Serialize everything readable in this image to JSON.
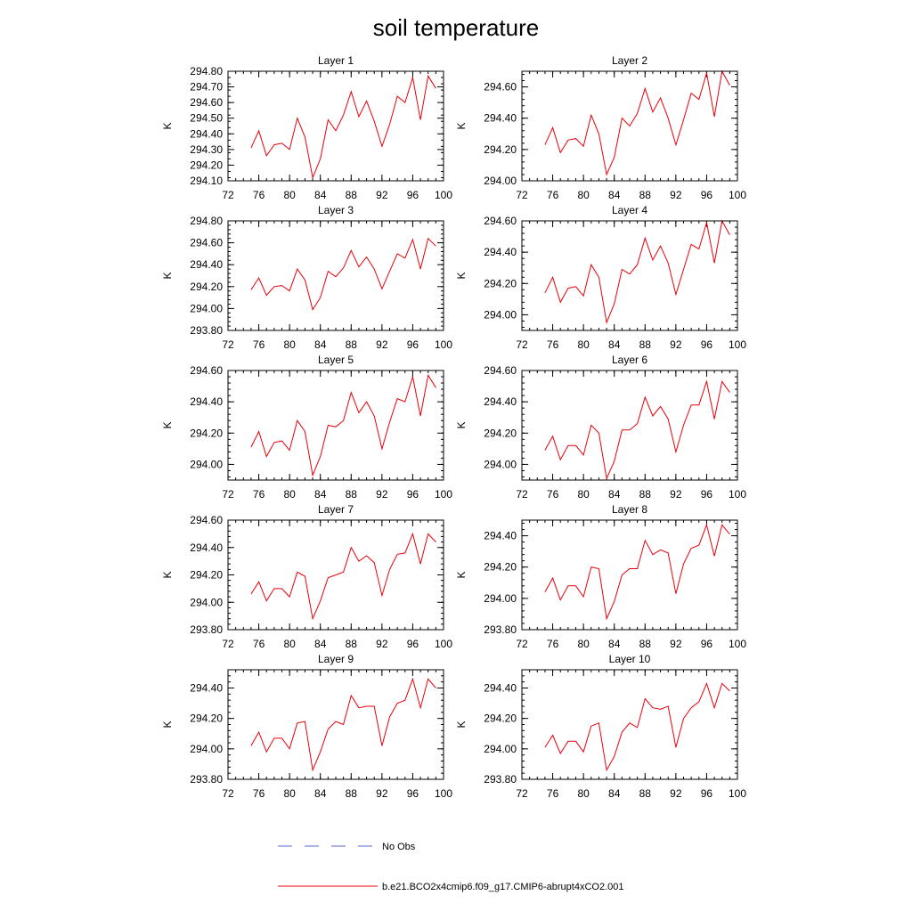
{
  "figure": {
    "title": "soil temperature",
    "legend": [
      {
        "label": "No Obs",
        "color": "#5a6ad6",
        "dash": true
      },
      {
        "label": "b.e21.BCO2x4cmip6.f09_g17.CMIP6-abrupt4xCO2.001",
        "color": "#e8000b",
        "dash": false
      }
    ]
  },
  "chart_data": [
    {
      "type": "line",
      "title": "Layer 1",
      "ylabel": "K",
      "xlim": [
        72,
        100
      ],
      "xticks": [
        "72",
        "76",
        "80",
        "84",
        "88",
        "92",
        "96",
        "100"
      ],
      "ylim": [
        294.1,
        294.8
      ],
      "yticks": [
        "294.10",
        "294.20",
        "294.30",
        "294.40",
        "294.50",
        "294.60",
        "294.70",
        "294.80"
      ],
      "series": [
        {
          "color": "#e8000b",
          "x": [
            75,
            76,
            77,
            78,
            79,
            80,
            81,
            82,
            83,
            84,
            85,
            86,
            87,
            88,
            89,
            90,
            91,
            92,
            93,
            94,
            95,
            96,
            97,
            98,
            99
          ],
          "values": [
            294.31,
            294.42,
            294.26,
            294.33,
            294.34,
            294.3,
            294.5,
            294.38,
            294.12,
            294.24,
            294.49,
            294.42,
            294.52,
            294.67,
            294.51,
            294.61,
            294.48,
            294.32,
            294.46,
            294.64,
            294.6,
            294.76,
            294.49,
            294.77,
            294.69
          ]
        }
      ]
    },
    {
      "type": "line",
      "title": "Layer 2",
      "ylabel": "K",
      "xlim": [
        72,
        100
      ],
      "xticks": [
        "72",
        "76",
        "80",
        "84",
        "88",
        "92",
        "96",
        "100"
      ],
      "ylim": [
        294.0,
        294.7
      ],
      "yticks": [
        "294.00",
        "294.20",
        "294.40",
        "294.60"
      ],
      "series": [
        {
          "color": "#e8000b",
          "x": [
            75,
            76,
            77,
            78,
            79,
            80,
            81,
            82,
            83,
            84,
            85,
            86,
            87,
            88,
            89,
            90,
            91,
            92,
            93,
            94,
            95,
            96,
            97,
            98,
            99
          ],
          "values": [
            294.23,
            294.34,
            294.18,
            294.26,
            294.27,
            294.22,
            294.42,
            294.3,
            294.04,
            294.15,
            294.4,
            294.35,
            294.43,
            294.59,
            294.44,
            294.53,
            294.4,
            294.23,
            294.39,
            294.56,
            294.52,
            294.69,
            294.41,
            294.7,
            294.61
          ]
        }
      ]
    },
    {
      "type": "line",
      "title": "Layer 3",
      "ylabel": "K",
      "xlim": [
        72,
        100
      ],
      "xticks": [
        "72",
        "76",
        "80",
        "84",
        "88",
        "92",
        "96",
        "100"
      ],
      "ylim": [
        293.8,
        294.8
      ],
      "yticks": [
        "293.80",
        "294.00",
        "294.20",
        "294.40",
        "294.60",
        "294.80"
      ],
      "series": [
        {
          "color": "#e8000b",
          "x": [
            75,
            76,
            77,
            78,
            79,
            80,
            81,
            82,
            83,
            84,
            85,
            86,
            87,
            88,
            89,
            90,
            91,
            92,
            93,
            94,
            95,
            96,
            97,
            98,
            99
          ],
          "values": [
            294.17,
            294.28,
            294.12,
            294.2,
            294.21,
            294.16,
            294.36,
            294.26,
            293.99,
            294.1,
            294.34,
            294.29,
            294.37,
            294.53,
            294.38,
            294.47,
            294.36,
            294.18,
            294.34,
            294.5,
            294.46,
            294.63,
            294.36,
            294.64,
            294.57
          ]
        }
      ]
    },
    {
      "type": "line",
      "title": "Layer 4",
      "ylabel": "K",
      "xlim": [
        72,
        100
      ],
      "xticks": [
        "72",
        "76",
        "80",
        "84",
        "88",
        "92",
        "96",
        "100"
      ],
      "ylim": [
        293.9,
        294.6
      ],
      "yticks": [
        "294.00",
        "294.20",
        "294.40",
        "294.60"
      ],
      "series": [
        {
          "color": "#e8000b",
          "x": [
            75,
            76,
            77,
            78,
            79,
            80,
            81,
            82,
            83,
            84,
            85,
            86,
            87,
            88,
            89,
            90,
            91,
            92,
            93,
            94,
            95,
            96,
            97,
            98,
            99
          ],
          "values": [
            294.14,
            294.24,
            294.08,
            294.17,
            294.18,
            294.12,
            294.32,
            294.24,
            293.95,
            294.07,
            294.29,
            294.26,
            294.32,
            294.49,
            294.35,
            294.44,
            294.33,
            294.13,
            294.29,
            294.45,
            294.42,
            294.59,
            294.33,
            294.6,
            294.51
          ]
        }
      ]
    },
    {
      "type": "line",
      "title": "Layer 5",
      "ylabel": "K",
      "xlim": [
        72,
        100
      ],
      "xticks": [
        "72",
        "76",
        "80",
        "84",
        "88",
        "92",
        "96",
        "100"
      ],
      "ylim": [
        293.9,
        294.6
      ],
      "yticks": [
        "294.00",
        "294.20",
        "294.40",
        "294.60"
      ],
      "series": [
        {
          "color": "#e8000b",
          "x": [
            75,
            76,
            77,
            78,
            79,
            80,
            81,
            82,
            83,
            84,
            85,
            86,
            87,
            88,
            89,
            90,
            91,
            92,
            93,
            94,
            95,
            96,
            97,
            98,
            99
          ],
          "values": [
            294.11,
            294.21,
            294.05,
            294.14,
            294.15,
            294.09,
            294.28,
            294.21,
            293.93,
            294.05,
            294.25,
            294.24,
            294.28,
            294.46,
            294.33,
            294.4,
            294.31,
            294.1,
            294.27,
            294.42,
            294.4,
            294.56,
            294.31,
            294.57,
            294.49
          ]
        }
      ]
    },
    {
      "type": "line",
      "title": "Layer 6",
      "ylabel": "K",
      "xlim": [
        72,
        100
      ],
      "xticks": [
        "72",
        "76",
        "80",
        "84",
        "88",
        "92",
        "96",
        "100"
      ],
      "ylim": [
        293.9,
        294.6
      ],
      "yticks": [
        "294.00",
        "294.20",
        "294.40",
        "294.60"
      ],
      "series": [
        {
          "color": "#e8000b",
          "x": [
            75,
            76,
            77,
            78,
            79,
            80,
            81,
            82,
            83,
            84,
            85,
            86,
            87,
            88,
            89,
            90,
            91,
            92,
            93,
            94,
            95,
            96,
            97,
            98,
            99
          ],
          "values": [
            294.09,
            294.18,
            294.03,
            294.12,
            294.12,
            294.06,
            294.25,
            294.2,
            293.91,
            294.02,
            294.22,
            294.22,
            294.26,
            294.43,
            294.31,
            294.37,
            294.29,
            294.08,
            294.25,
            294.38,
            294.38,
            294.53,
            294.29,
            294.53,
            294.46
          ]
        }
      ]
    },
    {
      "type": "line",
      "title": "Layer 7",
      "ylabel": "K",
      "xlim": [
        72,
        100
      ],
      "xticks": [
        "72",
        "76",
        "80",
        "84",
        "88",
        "92",
        "96",
        "100"
      ],
      "ylim": [
        293.8,
        294.6
      ],
      "yticks": [
        "293.80",
        "294.00",
        "294.20",
        "294.40",
        "294.60"
      ],
      "series": [
        {
          "color": "#e8000b",
          "x": [
            75,
            76,
            77,
            78,
            79,
            80,
            81,
            82,
            83,
            84,
            85,
            86,
            87,
            88,
            89,
            90,
            91,
            92,
            93,
            94,
            95,
            96,
            97,
            98,
            99
          ],
          "values": [
            294.06,
            294.15,
            294.01,
            294.1,
            294.1,
            294.04,
            294.22,
            294.19,
            293.88,
            294.01,
            294.18,
            294.2,
            294.22,
            294.4,
            294.3,
            294.34,
            294.29,
            294.05,
            294.24,
            294.35,
            294.36,
            294.5,
            294.28,
            294.5,
            294.44
          ]
        }
      ]
    },
    {
      "type": "line",
      "title": "Layer 8",
      "ylabel": "K",
      "xlim": [
        72,
        100
      ],
      "xticks": [
        "72",
        "76",
        "80",
        "84",
        "88",
        "92",
        "96",
        "100"
      ],
      "ylim": [
        293.8,
        294.5
      ],
      "yticks": [
        "293.80",
        "294.00",
        "294.20",
        "294.40"
      ],
      "series": [
        {
          "color": "#e8000b",
          "x": [
            75,
            76,
            77,
            78,
            79,
            80,
            81,
            82,
            83,
            84,
            85,
            86,
            87,
            88,
            89,
            90,
            91,
            92,
            93,
            94,
            95,
            96,
            97,
            98,
            99
          ],
          "values": [
            294.04,
            294.13,
            293.99,
            294.08,
            294.08,
            294.01,
            294.2,
            294.19,
            293.87,
            293.98,
            294.15,
            294.19,
            294.19,
            294.37,
            294.28,
            294.31,
            294.29,
            294.03,
            294.22,
            294.32,
            294.34,
            294.47,
            294.27,
            294.47,
            294.41
          ]
        }
      ]
    },
    {
      "type": "line",
      "title": "Layer 9",
      "ylabel": "K",
      "xlim": [
        72,
        100
      ],
      "xticks": [
        "72",
        "76",
        "80",
        "84",
        "88",
        "92",
        "96",
        "100"
      ],
      "ylim": [
        293.8,
        294.52
      ],
      "yticks": [
        "293.80",
        "294.00",
        "294.20",
        "294.40"
      ],
      "series": [
        {
          "color": "#e8000b",
          "x": [
            75,
            76,
            77,
            78,
            79,
            80,
            81,
            82,
            83,
            84,
            85,
            86,
            87,
            88,
            89,
            90,
            91,
            92,
            93,
            94,
            95,
            96,
            97,
            98,
            99
          ],
          "values": [
            294.02,
            294.11,
            293.98,
            294.07,
            294.07,
            294.0,
            294.17,
            294.18,
            293.86,
            293.98,
            294.13,
            294.18,
            294.16,
            294.35,
            294.27,
            294.28,
            294.28,
            294.02,
            294.21,
            294.3,
            294.32,
            294.46,
            294.27,
            294.46,
            294.4
          ]
        }
      ]
    },
    {
      "type": "line",
      "title": "Layer 10",
      "ylabel": "K",
      "xlim": [
        72,
        100
      ],
      "xticks": [
        "72",
        "76",
        "80",
        "84",
        "88",
        "92",
        "96",
        "100"
      ],
      "ylim": [
        293.8,
        294.52
      ],
      "yticks": [
        "293.80",
        "294.00",
        "294.20",
        "294.40"
      ],
      "series": [
        {
          "color": "#e8000b",
          "x": [
            75,
            76,
            77,
            78,
            79,
            80,
            81,
            82,
            83,
            84,
            85,
            86,
            87,
            88,
            89,
            90,
            91,
            92,
            93,
            94,
            95,
            96,
            97,
            98,
            99
          ],
          "values": [
            294.01,
            294.09,
            293.97,
            294.05,
            294.05,
            293.98,
            294.15,
            294.17,
            293.86,
            293.95,
            294.11,
            294.17,
            294.14,
            294.33,
            294.27,
            294.26,
            294.28,
            294.01,
            294.2,
            294.27,
            294.31,
            294.43,
            294.27,
            294.43,
            294.38
          ]
        }
      ]
    }
  ]
}
